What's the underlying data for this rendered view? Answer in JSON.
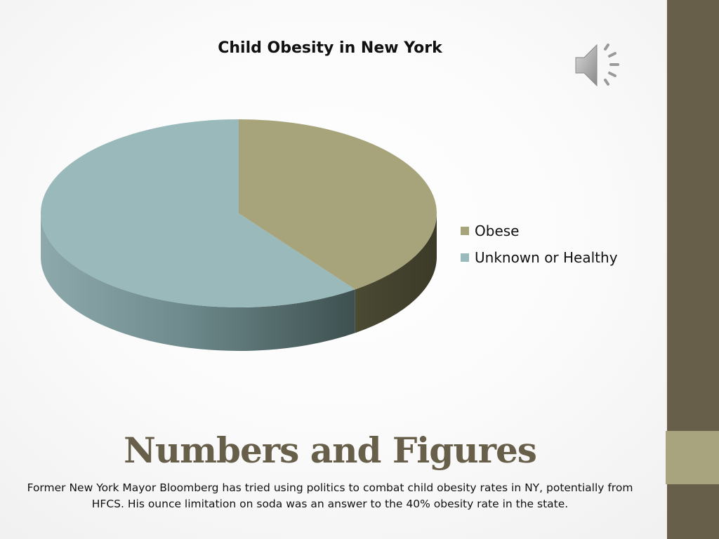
{
  "slide": {
    "heading": "Numbers and Figures",
    "body": "Former New York Mayor Bloomberg has tried using politics to combat child obesity rates in NY, potentially from HFCS.  His ounce limitation on soda was an answer to the 40% obesity rate in the state."
  },
  "icons": {
    "audio": "speaker-icon"
  },
  "chart_data": {
    "type": "pie",
    "title": "Child Obesity in New York",
    "three_d": true,
    "legend_position": "right",
    "series": [
      {
        "categories": [
          "Obese",
          "Unknown or Healthy"
        ],
        "values": [
          40,
          60
        ]
      }
    ],
    "colors": {
      "Obese": "#a7a37a",
      "Unknown or Healthy": "#99b9bb"
    }
  },
  "theme": {
    "accent_dark": "#675f4a",
    "accent_light": "#a7a47e"
  }
}
